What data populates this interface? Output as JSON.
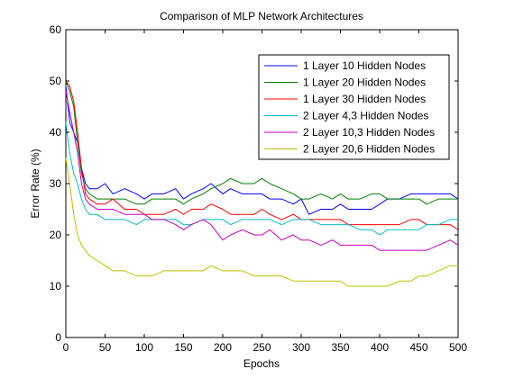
{
  "chart_data": {
    "type": "line",
    "title": "Comparison of MLP Network Architectures",
    "xlabel": "Epochs",
    "ylabel": "Error Rate (%)",
    "xlim": [
      0,
      500
    ],
    "ylim": [
      0,
      60
    ],
    "xticks": [
      0,
      50,
      100,
      150,
      200,
      250,
      300,
      350,
      400,
      450,
      500
    ],
    "yticks": [
      0,
      10,
      20,
      30,
      40,
      50,
      60
    ],
    "grid": false,
    "legend_position": "top-right",
    "series": [
      {
        "name": "1 Layer 10 Hidden Nodes",
        "color": "#0000ff",
        "x": [
          0,
          5,
          10,
          15,
          20,
          25,
          30,
          40,
          50,
          60,
          75,
          90,
          100,
          110,
          125,
          140,
          150,
          160,
          175,
          185,
          200,
          210,
          225,
          240,
          250,
          260,
          275,
          290,
          300,
          310,
          325,
          340,
          350,
          360,
          375,
          390,
          400,
          410,
          425,
          440,
          450,
          460,
          475,
          490,
          500
        ],
        "y": [
          49,
          42,
          40,
          38,
          33,
          30,
          29,
          29,
          30,
          28,
          29,
          28,
          27,
          28,
          28,
          29,
          27,
          28,
          29,
          30,
          28,
          29,
          28,
          28,
          28,
          27,
          27,
          26,
          27,
          24,
          25,
          25,
          26,
          25,
          25,
          25,
          26,
          27,
          27,
          28,
          28,
          28,
          28,
          28,
          27
        ]
      },
      {
        "name": "1 Layer 20 Hidden Nodes",
        "color": "#008000",
        "x": [
          0,
          5,
          10,
          15,
          20,
          25,
          30,
          40,
          50,
          60,
          75,
          90,
          100,
          110,
          125,
          140,
          150,
          160,
          175,
          185,
          200,
          210,
          225,
          240,
          250,
          260,
          275,
          290,
          300,
          310,
          325,
          340,
          350,
          360,
          375,
          390,
          400,
          410,
          425,
          440,
          450,
          460,
          475,
          490,
          500
        ],
        "y": [
          50,
          48,
          45,
          38,
          32,
          29,
          28,
          27,
          27,
          27,
          27,
          26,
          26,
          27,
          27,
          27,
          26,
          27,
          28,
          29,
          30,
          31,
          30,
          30,
          31,
          30,
          29,
          28,
          27,
          27,
          28,
          27,
          28,
          27,
          27,
          28,
          28,
          27,
          27,
          27,
          27,
          26,
          27,
          27,
          27
        ]
      },
      {
        "name": "1 Layer 30 Hidden Nodes",
        "color": "#ff0000",
        "x": [
          0,
          5,
          10,
          15,
          20,
          25,
          30,
          40,
          50,
          60,
          75,
          90,
          100,
          110,
          125,
          140,
          150,
          160,
          175,
          185,
          200,
          210,
          225,
          240,
          250,
          260,
          275,
          290,
          300,
          310,
          325,
          340,
          350,
          360,
          375,
          390,
          400,
          410,
          425,
          440,
          450,
          460,
          475,
          490,
          500
        ],
        "y": [
          50,
          49,
          46,
          40,
          33,
          28,
          27,
          26,
          26,
          27,
          25,
          25,
          24,
          24,
          24,
          25,
          24,
          25,
          25,
          26,
          25,
          24,
          24,
          24,
          25,
          24,
          23,
          24,
          23,
          23,
          23,
          23,
          23,
          22,
          22,
          22,
          22,
          22,
          22,
          23,
          23,
          22,
          22,
          22,
          21
        ]
      },
      {
        "name": "2 Layer 4,3 Hidden Nodes",
        "color": "#00bfbf",
        "x": [
          0,
          5,
          10,
          15,
          20,
          25,
          30,
          40,
          50,
          60,
          75,
          90,
          100,
          110,
          125,
          140,
          150,
          160,
          175,
          185,
          200,
          210,
          225,
          240,
          250,
          260,
          275,
          290,
          300,
          310,
          325,
          340,
          350,
          360,
          375,
          390,
          400,
          410,
          425,
          440,
          450,
          460,
          475,
          490,
          500
        ],
        "y": [
          42,
          36,
          32,
          30,
          27,
          25,
          24,
          24,
          23,
          23,
          23,
          22,
          23,
          23,
          23,
          23,
          22,
          22,
          23,
          23,
          23,
          22,
          23,
          23,
          23,
          23,
          22,
          23,
          23,
          23,
          22,
          22,
          22,
          22,
          21,
          21,
          20,
          21,
          21,
          21,
          21,
          22,
          22,
          23,
          23
        ]
      },
      {
        "name": "2 Layer 10,3 Hidden Nodes",
        "color": "#bf00bf",
        "x": [
          0,
          5,
          10,
          15,
          20,
          25,
          30,
          40,
          50,
          60,
          75,
          90,
          100,
          110,
          125,
          140,
          150,
          160,
          175,
          185,
          200,
          210,
          225,
          240,
          250,
          260,
          275,
          290,
          300,
          310,
          325,
          340,
          350,
          360,
          375,
          390,
          400,
          410,
          425,
          440,
          450,
          460,
          475,
          490,
          500
        ],
        "y": [
          48,
          44,
          40,
          36,
          30,
          27,
          26,
          25,
          25,
          25,
          24,
          24,
          24,
          23,
          23,
          22,
          21,
          22,
          23,
          22,
          19,
          20,
          21,
          20,
          20,
          21,
          19,
          20,
          19,
          19,
          18,
          19,
          18,
          18,
          18,
          18,
          17,
          17,
          17,
          17,
          17,
          17,
          18,
          19,
          18
        ]
      },
      {
        "name": "2 Layer 20,6 Hidden Nodes",
        "color": "#bfbf00",
        "x": [
          0,
          5,
          10,
          15,
          20,
          25,
          30,
          40,
          50,
          60,
          75,
          90,
          100,
          110,
          125,
          140,
          150,
          160,
          175,
          185,
          200,
          210,
          225,
          240,
          250,
          260,
          275,
          290,
          300,
          310,
          325,
          340,
          350,
          360,
          375,
          390,
          400,
          410,
          425,
          440,
          450,
          460,
          475,
          490,
          500
        ],
        "y": [
          35,
          30,
          24,
          20,
          18,
          17,
          16,
          15,
          14,
          13,
          13,
          12,
          12,
          12,
          13,
          13,
          13,
          13,
          13,
          14,
          13,
          13,
          13,
          12,
          12,
          12,
          12,
          11,
          11,
          11,
          11,
          11,
          11,
          10,
          10,
          10,
          10,
          10,
          11,
          11,
          12,
          12,
          13,
          14,
          14
        ]
      }
    ]
  }
}
